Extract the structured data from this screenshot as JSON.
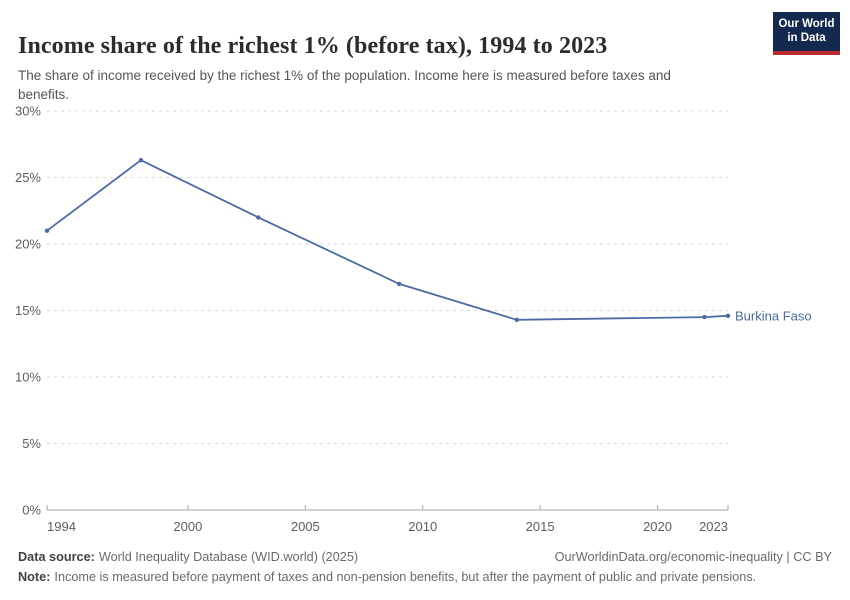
{
  "header": {
    "title": "Income share of the richest 1% (before tax), 1994 to 2023",
    "subtitle": "The share of income received by the richest 1% of the population. Income here is measured before taxes and benefits.",
    "logo": {
      "line1": "Our World",
      "line2": "in Data"
    }
  },
  "chart_data": {
    "type": "line",
    "title": "Income share of the richest 1% (before tax), 1994 to 2023",
    "x": [
      1994,
      1998,
      2003,
      2009,
      2014,
      2022,
      2023
    ],
    "series": [
      {
        "name": "Burkina Faso",
        "color": "#4c6ba3",
        "values": [
          21.0,
          26.3,
          22.0,
          17.0,
          14.3,
          14.5,
          14.6
        ]
      }
    ],
    "xlim": [
      1994,
      2023
    ],
    "ylim": [
      0,
      30
    ],
    "x_ticks": [
      1994,
      2000,
      2005,
      2010,
      2015,
      2020,
      2023
    ],
    "x_tick_labels": [
      "1994",
      "2000",
      "2005",
      "2010",
      "2015",
      "2020",
      "2023"
    ],
    "y_ticks": [
      0,
      5,
      10,
      15,
      20,
      25,
      30
    ],
    "y_tick_labels": [
      "0%",
      "5%",
      "10%",
      "15%",
      "20%",
      "25%",
      "30%"
    ],
    "grid": "horizontal-dashed",
    "legend_position": "end-of-line-label",
    "end_label": "Burkina Faso",
    "xlabel": "",
    "ylabel": ""
  },
  "footer": {
    "datasource_label": "Data source:",
    "datasource_text": "World Inequality Database (WID.world) (2025)",
    "link_text": "OurWorldinData.org/economic-inequality | CC BY",
    "note_label": "Note:",
    "note_text": "Income is measured before payment of taxes and non-pension benefits, but after the payment of public and private pensions."
  },
  "colors": {
    "line": "#4c6ba3",
    "grid": "#dadada",
    "axis": "#a5a5a5",
    "tick_text": "#5e5e5e",
    "logo_navy": "#13294d",
    "logo_red": "#bb2b2f",
    "title_text": "#2d2b2b",
    "subtitle_text": "#565656"
  }
}
